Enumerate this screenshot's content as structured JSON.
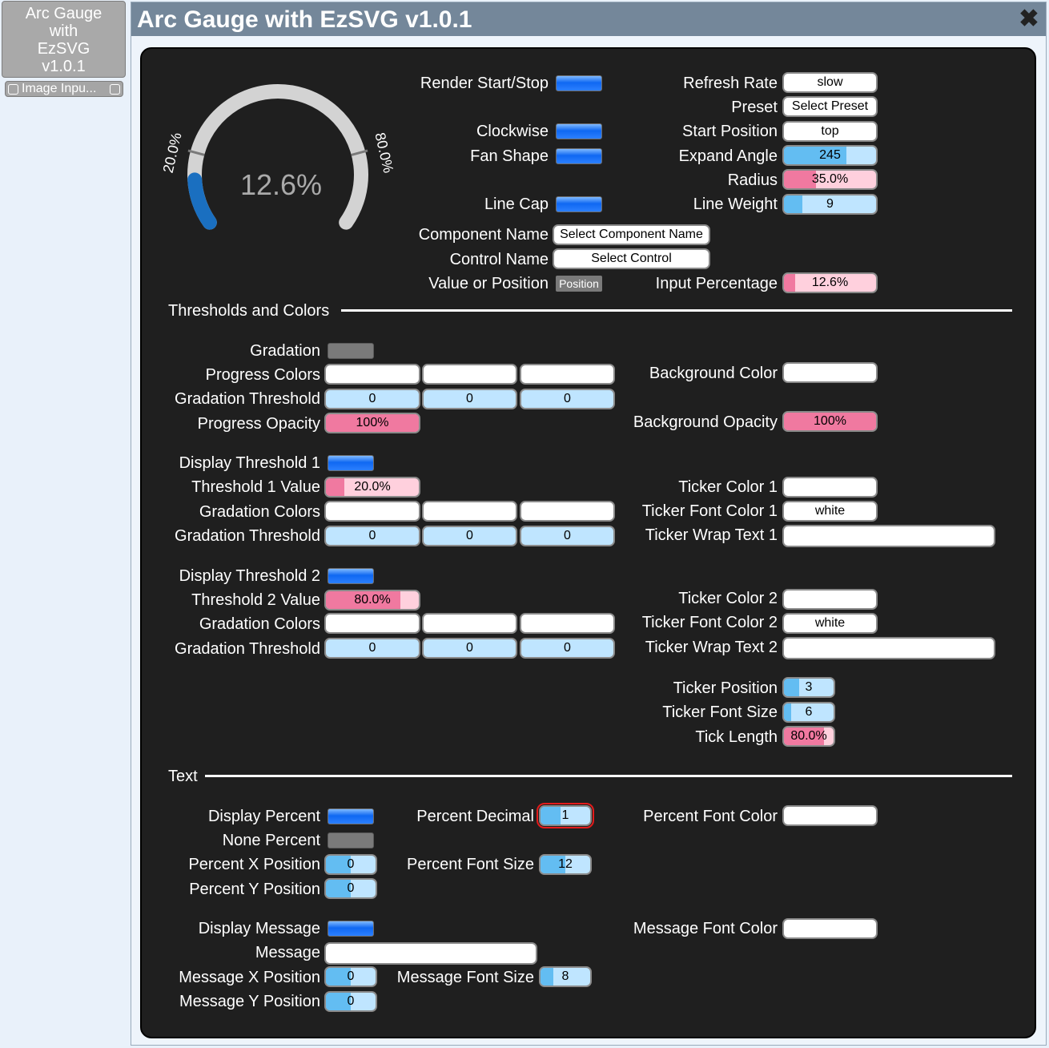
{
  "node": {
    "title_lines": [
      "Arc Gauge",
      "with",
      "EzSVG",
      "v1.0.1"
    ],
    "pin_label": "Image Inpu..."
  },
  "window": {
    "title": "Arc Gauge with EzSVG v1.0.1",
    "close_icon": "close-icon"
  },
  "gauge": {
    "value_text": "12.6%",
    "tick1_label": "20.0%",
    "tick2_label": "80.0%",
    "value_fraction": 0.126,
    "track_color": "#d3d3d3",
    "progress_color": "#1a6fc0"
  },
  "top": {
    "render_start_stop": "Render Start/Stop",
    "clockwise": "Clockwise",
    "fan_shape": "Fan Shape",
    "line_cap": "Line Cap",
    "component_name": {
      "label": "Component Name",
      "value": "Select Component Name"
    },
    "control_name": {
      "label": "Control Name",
      "value": "Select Control"
    },
    "value_or_position": {
      "label": "Value or Position",
      "value": "Position"
    },
    "refresh_rate": {
      "label": "Refresh Rate",
      "value": "slow"
    },
    "preset": {
      "label": "Preset",
      "value": "Select Preset"
    },
    "start_position": {
      "label": "Start Position",
      "value": "top"
    },
    "expand_angle": {
      "label": "Expand Angle",
      "value": "245",
      "fill": 0.68
    },
    "radius": {
      "label": "Radius",
      "value": "35.0%",
      "fill": 0.35
    },
    "line_weight": {
      "label": "Line Weight",
      "value": "9",
      "fill": 0.2
    },
    "input_percentage": {
      "label": "Input Percentage",
      "value": "12.6%",
      "fill": 0.126
    }
  },
  "thresholds": {
    "section": "Thresholds and Colors",
    "gradation": "Gradation",
    "progress_colors": "Progress Colors",
    "gradation_threshold": "Gradation Threshold",
    "progress_opacity": {
      "label": "Progress Opacity",
      "value": "100%",
      "fill": 1.0
    },
    "background_color": "Background Color",
    "background_opacity": {
      "label": "Background Opacity",
      "value": "100%",
      "fill": 1.0
    },
    "grad_values": [
      "0",
      "0",
      "0"
    ],
    "t1": {
      "display": "Display Threshold 1",
      "value_label": "Threshold 1 Value",
      "value": "20.0%",
      "fill": 0.2,
      "gradation_colors": "Gradation Colors",
      "gradation_threshold": "Gradation Threshold",
      "ticker_color": "Ticker Color 1",
      "ticker_font_color": {
        "label": "Ticker Font Color 1",
        "value": "white"
      },
      "ticker_wrap_text": "Ticker Wrap Text 1"
    },
    "t2": {
      "display": "Display Threshold 2",
      "value_label": "Threshold 2 Value",
      "value": "80.0%",
      "fill": 0.8,
      "gradation_colors": "Gradation Colors",
      "gradation_threshold": "Gradation Threshold",
      "ticker_color": "Ticker Color 2",
      "ticker_font_color": {
        "label": "Ticker Font Color 2",
        "value": "white"
      },
      "ticker_wrap_text": "Ticker Wrap Text 2"
    },
    "ticker_position": {
      "label": "Ticker Position",
      "value": "3",
      "fill": 0.3
    },
    "ticker_font_size": {
      "label": "Ticker Font Size",
      "value": "6",
      "fill": 0.15
    },
    "tick_length": {
      "label": "Tick Length",
      "value": "80.0%",
      "fill": 0.8
    }
  },
  "text": {
    "section": "Text",
    "display_percent": "Display Percent",
    "none_percent": "None Percent",
    "percent_x": {
      "label": "Percent X Position",
      "value": "0",
      "fill": 0.5
    },
    "percent_y": {
      "label": "Percent Y Position",
      "value": "0",
      "fill": 0.5
    },
    "percent_decimal": {
      "label": "Percent Decimal",
      "value": "1",
      "fill": 0.4
    },
    "percent_font_size": {
      "label": "Percent Font Size",
      "value": "12",
      "fill": 0.5
    },
    "percent_font_color": "Percent Font Color",
    "display_message": "Display Message",
    "message": "Message",
    "message_x": {
      "label": "Message X Position",
      "value": "0",
      "fill": 0.5
    },
    "message_y": {
      "label": "Message Y Position",
      "value": "0",
      "fill": 0.5
    },
    "message_font_size": {
      "label": "Message Font Size",
      "value": "8",
      "fill": 0.25
    },
    "message_font_color": "Message Font Color"
  }
}
